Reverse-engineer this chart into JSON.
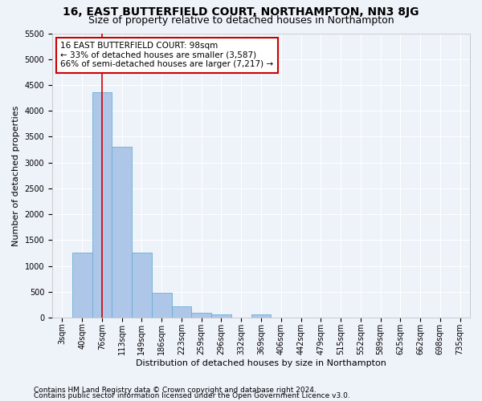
{
  "title": "16, EAST BUTTERFIELD COURT, NORTHAMPTON, NN3 8JG",
  "subtitle": "Size of property relative to detached houses in Northampton",
  "xlabel": "Distribution of detached houses by size in Northampton",
  "ylabel": "Number of detached properties",
  "footnote1": "Contains HM Land Registry data © Crown copyright and database right 2024.",
  "footnote2": "Contains public sector information licensed under the Open Government Licence v3.0.",
  "bar_categories": [
    "3sqm",
    "40sqm",
    "76sqm",
    "113sqm",
    "149sqm",
    "186sqm",
    "223sqm",
    "259sqm",
    "296sqm",
    "332sqm",
    "369sqm",
    "406sqm",
    "442sqm",
    "479sqm",
    "515sqm",
    "552sqm",
    "589sqm",
    "625sqm",
    "662sqm",
    "698sqm",
    "735sqm"
  ],
  "bar_values": [
    0,
    1260,
    4360,
    3300,
    1260,
    480,
    215,
    90,
    60,
    0,
    60,
    0,
    0,
    0,
    0,
    0,
    0,
    0,
    0,
    0,
    0
  ],
  "bar_color": "#aec6e8",
  "bar_edge_color": "#6aaed6",
  "ylim": [
    0,
    5500
  ],
  "yticks": [
    0,
    500,
    1000,
    1500,
    2000,
    2500,
    3000,
    3500,
    4000,
    4500,
    5000,
    5500
  ],
  "vline_x": 2,
  "vline_color": "#cc0000",
  "annotation_text": "16 EAST BUTTERFIELD COURT: 98sqm\n← 33% of detached houses are smaller (3,587)\n66% of semi-detached houses are larger (7,217) →",
  "annotation_box_color": "#ffffff",
  "annotation_box_edge_color": "#cc0000",
  "background_color": "#eef2f9",
  "grid_color": "#ffffff",
  "title_fontsize": 10,
  "subtitle_fontsize": 9,
  "axis_label_fontsize": 8,
  "tick_fontsize": 7,
  "annotation_fontsize": 7.5,
  "footnote_fontsize": 6.5
}
